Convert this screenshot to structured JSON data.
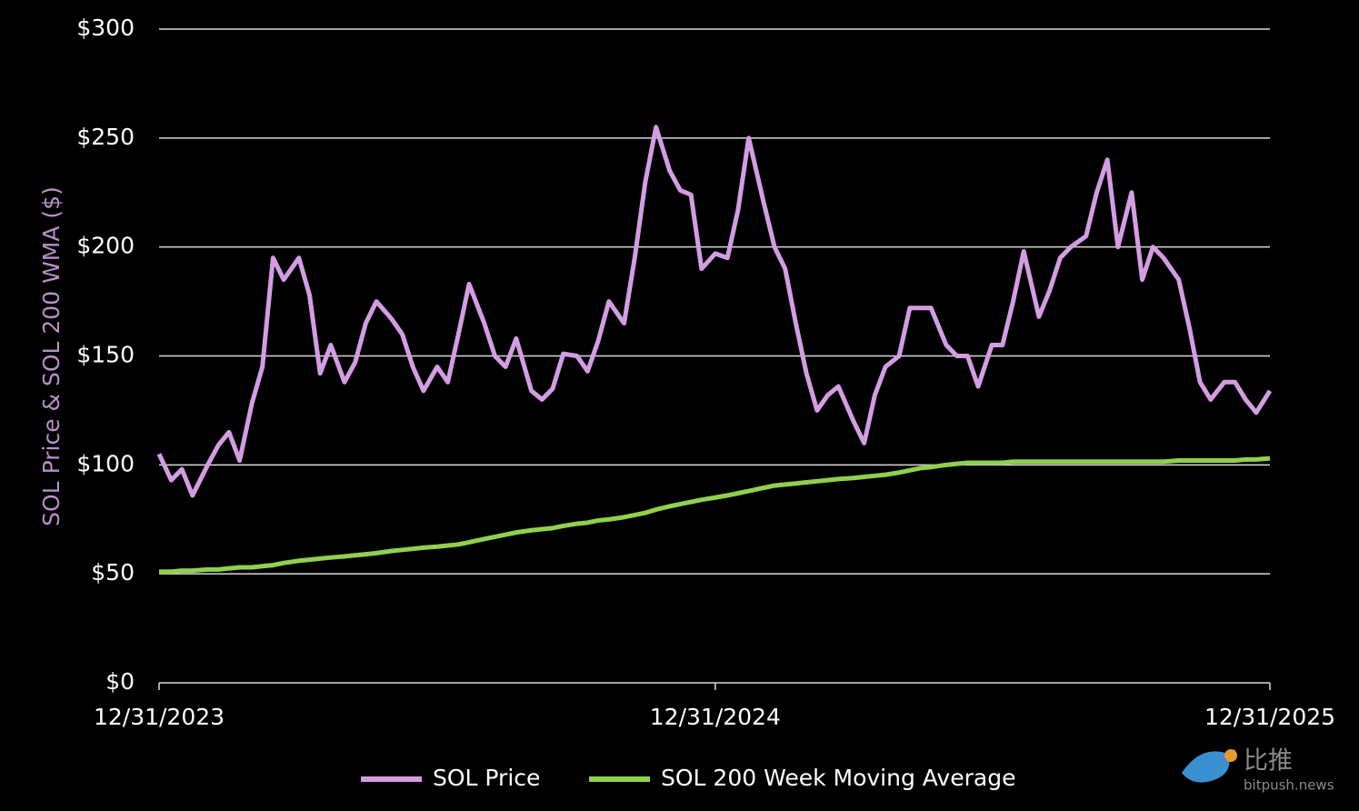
{
  "chart_data": {
    "type": "line",
    "y_label": "SOL Price & SOL 200 WMA ($)",
    "x": [
      "12/31/2023",
      "1/8/2024",
      "1/15/2024",
      "1/22/2024",
      "2/1/2024",
      "2/8/2024",
      "2/15/2024",
      "2/22/2024",
      "3/1/2024",
      "3/8/2024",
      "3/15/2024",
      "3/22/2024",
      "4/1/2024",
      "4/8/2024",
      "4/15/2024",
      "4/22/2024",
      "5/1/2024",
      "5/8/2024",
      "5/15/2024",
      "5/22/2024",
      "6/1/2024",
      "6/8/2024",
      "6/15/2024",
      "6/22/2024",
      "7/1/2024",
      "7/8/2024",
      "7/15/2024",
      "7/22/2024",
      "8/1/2024",
      "8/8/2024",
      "8/15/2024",
      "8/22/2024",
      "9/1/2024",
      "9/8/2024",
      "9/15/2024",
      "9/22/2024",
      "10/1/2024",
      "10/8/2024",
      "10/15/2024",
      "10/22/2024",
      "11/1/2024",
      "11/8/2024",
      "11/15/2024",
      "11/22/2024",
      "12/1/2024",
      "12/8/2024",
      "12/15/2024",
      "12/22/2024",
      "12/31/2024",
      "1/8/2025",
      "1/15/2025",
      "1/22/2025",
      "2/1/2025",
      "2/8/2025",
      "2/15/2025",
      "2/22/2025",
      "3/1/2025",
      "3/8/2025",
      "3/15/2025",
      "3/22/2025",
      "4/1/2025",
      "4/8/2025",
      "4/15/2025",
      "4/22/2025",
      "5/1/2025",
      "5/8/2025",
      "5/15/2025",
      "5/22/2025",
      "6/1/2025",
      "6/8/2025",
      "6/15/2025",
      "6/22/2025",
      "7/1/2025",
      "7/8/2025",
      "7/15/2025",
      "7/22/2025",
      "8/1/2025",
      "8/8/2025",
      "8/15/2025",
      "8/22/2025",
      "9/1/2025",
      "9/8/2025",
      "9/15/2025",
      "9/22/2025",
      "10/1/2025",
      "10/8/2025",
      "10/15/2025",
      "10/22/2025",
      "11/1/2025",
      "11/8/2025",
      "11/15/2025",
      "11/22/2025",
      "12/1/2025",
      "12/8/2025",
      "12/15/2025",
      "12/22/2025",
      "12/31/2025"
    ],
    "series": [
      {
        "name": "SOL Price",
        "color": "#d49de3",
        "values": [
          105,
          93,
          98,
          86,
          100,
          109,
          115,
          102,
          128,
          145,
          195,
          185,
          195,
          178,
          142,
          155,
          138,
          147,
          165,
          175,
          167,
          160,
          145,
          134,
          145,
          138,
          160,
          183,
          165,
          150,
          145,
          158,
          134,
          130,
          135,
          151,
          150,
          143,
          157,
          175,
          165,
          195,
          230,
          255,
          235,
          226,
          224,
          190,
          197,
          195,
          217,
          250,
          220,
          200,
          190,
          165,
          142,
          125,
          132,
          136,
          120,
          110,
          132,
          145,
          150,
          172,
          172,
          172,
          155,
          150,
          150,
          136,
          155,
          155,
          175,
          198,
          168,
          180,
          195,
          200,
          205,
          225,
          240,
          200,
          225,
          185,
          200,
          195,
          185,
          163,
          138,
          130,
          138,
          138,
          130,
          124,
          134
        ]
      },
      {
        "name": "SOL 200 Week Moving Average",
        "color": "#8fd14f",
        "values": [
          51,
          51,
          51.5,
          51.5,
          52,
          52,
          52.5,
          53,
          53,
          53.5,
          54,
          55,
          56,
          56.5,
          57,
          57.5,
          58,
          58.5,
          59,
          59.5,
          60.5,
          61,
          61.5,
          62,
          62.5,
          63,
          63.5,
          64.5,
          66,
          67,
          68,
          69,
          70,
          70.5,
          71,
          72,
          73,
          73.5,
          74.5,
          75,
          76,
          77,
          78,
          79.5,
          81,
          82,
          83,
          84,
          85,
          86,
          87,
          88,
          89.5,
          90.5,
          91,
          91.5,
          92,
          92.5,
          93,
          93.5,
          94,
          94.5,
          95,
          95.5,
          96.5,
          97.5,
          98.5,
          99,
          100,
          100.5,
          101,
          101,
          101,
          101,
          101.5,
          101.5,
          101.5,
          101.5,
          101.5,
          101.5,
          101.5,
          101.5,
          101.5,
          101.5,
          101.5,
          101.5,
          101.5,
          101.5,
          102,
          102,
          102,
          102,
          102,
          102,
          102.5,
          102.5,
          103
        ]
      }
    ],
    "xlim": [
      "12/31/2023",
      "12/31/2025"
    ],
    "xticks": [
      "12/31/2023",
      "12/31/2024",
      "12/31/2025"
    ],
    "ylim": [
      0,
      300
    ],
    "yticks": [
      {
        "value": 0,
        "label": "$0"
      },
      {
        "value": 50,
        "label": "$50"
      },
      {
        "value": 100,
        "label": "$100"
      },
      {
        "value": 150,
        "label": "$150"
      },
      {
        "value": 200,
        "label": "$200"
      },
      {
        "value": 250,
        "label": "$250"
      },
      {
        "value": 300,
        "label": "$300"
      }
    ],
    "grid": true,
    "legend": "bottom",
    "watermark": [
      "比推",
      "bitpush.news"
    ]
  }
}
